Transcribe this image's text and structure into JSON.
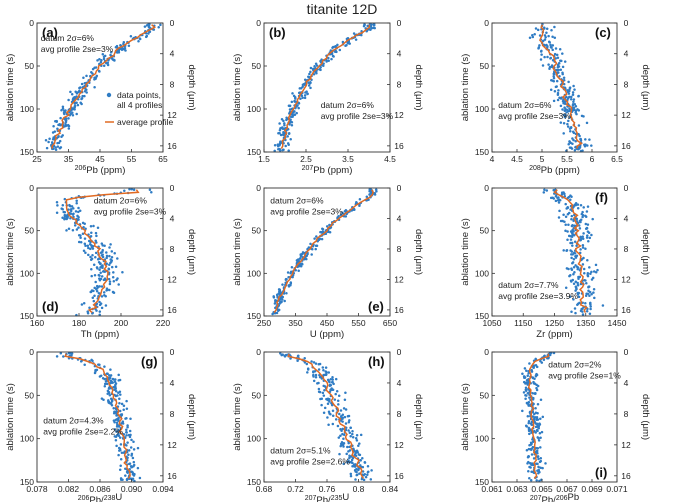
{
  "title": "titanite 12D",
  "y_axis_label": "ablation time (s)",
  "y2_axis_label": "depth (μm)",
  "y_ticks": [
    "0",
    "50",
    "100",
    "150"
  ],
  "y2_ticks": [
    "0",
    "4",
    "8",
    "12",
    "16"
  ],
  "colors": {
    "points": "#2f7cc4",
    "average": "#e06a23"
  },
  "legend": {
    "points_line1": "data points,",
    "points_line2": "all 4 profiles",
    "average": "average profile"
  },
  "chart_data": [
    {
      "id": "a",
      "label": "(a)",
      "type": "scatter",
      "xlabel_main": "Pb (ppm)",
      "xlabel_sup": "206",
      "xlabel_sub": "",
      "xlabel_tail": "",
      "xlim": [
        25,
        65
      ],
      "xticks": [
        "25",
        "35",
        "45",
        "55",
        "65"
      ],
      "ylim": [
        150,
        0
      ],
      "annotation": [
        "datum 2σ=6%",
        "avg profile 2se=3%"
      ],
      "profile_t": [
        5,
        10,
        15,
        20,
        30,
        40,
        50,
        60,
        70,
        80,
        90,
        100,
        110,
        120,
        130,
        140,
        145
      ],
      "profile_v": [
        62,
        60,
        58,
        55,
        51,
        48,
        45,
        43,
        41,
        39,
        37,
        35.5,
        34,
        33,
        31.5,
        30.5,
        30
      ],
      "jitter": 2.5
    },
    {
      "id": "b",
      "label": "(b)",
      "type": "scatter",
      "xlabel_main": "Pb (ppm)",
      "xlabel_sup": "207",
      "xlabel_sub": "",
      "xlabel_tail": "",
      "xlim": [
        1.5,
        4.5
      ],
      "xticks": [
        "1.5",
        "2.5",
        "3.5",
        "4.5"
      ],
      "ylim": [
        150,
        0
      ],
      "annotation": [
        "datum 2σ=6%",
        "avg profile 2se=3%"
      ],
      "profile_t": [
        5,
        10,
        15,
        20,
        30,
        40,
        50,
        60,
        70,
        80,
        90,
        100,
        110,
        120,
        130,
        140,
        145
      ],
      "profile_v": [
        4.0,
        3.9,
        3.7,
        3.5,
        3.2,
        3.0,
        2.8,
        2.65,
        2.5,
        2.4,
        2.3,
        2.2,
        2.1,
        2.05,
        2.0,
        1.95,
        1.9
      ],
      "jitter": 0.15
    },
    {
      "id": "c",
      "label": "(c)",
      "type": "scatter",
      "xlabel_main": "Pb (ppm)",
      "xlabel_sup": "208",
      "xlabel_sub": "",
      "xlabel_tail": "",
      "xlim": [
        4,
        6.5
      ],
      "xticks": [
        "4",
        "4.5",
        "5",
        "5.5",
        "6",
        "6.5"
      ],
      "ylim": [
        150,
        0
      ],
      "annotation": [
        "datum 2σ=6%",
        "avg profile 2se=3%"
      ],
      "profile_t": [
        5,
        10,
        15,
        20,
        30,
        40,
        50,
        60,
        70,
        80,
        90,
        100,
        110,
        120,
        130,
        140,
        145
      ],
      "profile_v": [
        5.0,
        5.05,
        4.95,
        5.0,
        5.1,
        5.2,
        5.25,
        5.3,
        5.4,
        5.45,
        5.5,
        5.55,
        5.6,
        5.65,
        5.7,
        5.75,
        5.7
      ],
      "jitter": 0.22
    },
    {
      "id": "d",
      "label": "(d)",
      "type": "scatter",
      "xlabel_main": "Th (ppm)",
      "xlabel_sup": "",
      "xlabel_sub": "",
      "xlabel_tail": "",
      "xlim": [
        160,
        230
      ],
      "xticks": [
        "160",
        "180",
        "200",
        "220"
      ],
      "ylim": [
        150,
        0
      ],
      "annotation": [
        "datum 2σ=6%",
        "avg profile 2se=3%"
      ],
      "profile_t": [
        5,
        10,
        15,
        20,
        30,
        40,
        50,
        60,
        70,
        80,
        90,
        100,
        110,
        120,
        130,
        140,
        145
      ],
      "profile_v": [
        215,
        185,
        175,
        176,
        178,
        182,
        186,
        190,
        193,
        196,
        198,
        199,
        198,
        196,
        194,
        192,
        190
      ],
      "jitter": 7
    },
    {
      "id": "e",
      "label": "(e)",
      "type": "scatter",
      "xlabel_main": "U (ppm)",
      "xlabel_sup": "",
      "xlabel_sub": "",
      "xlabel_tail": "",
      "xlim": [
        250,
        700
      ],
      "xticks": [
        "250",
        "350",
        "450",
        "550",
        "650"
      ],
      "ylim": [
        150,
        0
      ],
      "annotation": [
        "datum 2σ=6%",
        "avg profile 2se=3%"
      ],
      "profile_t": [
        5,
        10,
        15,
        20,
        30,
        40,
        50,
        60,
        70,
        80,
        90,
        100,
        110,
        120,
        130,
        140,
        145
      ],
      "profile_v": [
        640,
        630,
        605,
        580,
        540,
        500,
        470,
        440,
        415,
        395,
        370,
        350,
        335,
        320,
        305,
        295,
        290
      ],
      "jitter": 18
    },
    {
      "id": "f",
      "label": "(f)",
      "type": "scatter",
      "xlabel_main": "Zr (ppm)",
      "xlabel_sup": "",
      "xlabel_sub": "",
      "xlabel_tail": "",
      "xlim": [
        1050,
        1450
      ],
      "xticks": [
        "1050",
        "1150",
        "1250",
        "1350",
        "1450"
      ],
      "ylim": [
        150,
        0
      ],
      "annotation": [
        "datum 2σ=7.7%",
        "avg profile 2se=3.9%"
      ],
      "profile_t": [
        5,
        10,
        15,
        20,
        30,
        40,
        50,
        60,
        70,
        80,
        90,
        100,
        110,
        120,
        130,
        140,
        145
      ],
      "profile_v": [
        1250,
        1280,
        1300,
        1310,
        1315,
        1320,
        1320,
        1325,
        1325,
        1330,
        1330,
        1335,
        1335,
        1340,
        1340,
        1345,
        1340
      ],
      "jitter": 45
    },
    {
      "id": "g",
      "label": "(g)",
      "type": "scatter",
      "xlabel_main": "Pb/",
      "xlabel_sup": "206",
      "xlabel_sub": "238",
      "xlabel_tail": "U",
      "xlim": [
        0.078,
        0.094
      ],
      "xticks": [
        "0.078",
        "0.082",
        "0.086",
        "0.090",
        "0.094"
      ],
      "ylim": [
        150,
        0
      ],
      "annotation": [
        "datum 2σ=4.3%",
        "avg profile 2se=2.2%"
      ],
      "profile_t": [
        5,
        10,
        15,
        20,
        30,
        40,
        50,
        60,
        70,
        80,
        90,
        100,
        110,
        120,
        130,
        140,
        145
      ],
      "profile_v": [
        0.0815,
        0.0845,
        0.0855,
        0.0862,
        0.087,
        0.0874,
        0.0877,
        0.088,
        0.0883,
        0.0885,
        0.0887,
        0.0889,
        0.0891,
        0.0893,
        0.0895,
        0.0897,
        0.0898
      ],
      "jitter": 0.0012
    },
    {
      "id": "h",
      "label": "(h)",
      "type": "scatter",
      "xlabel_main": "Pb/",
      "xlabel_sup": "207",
      "xlabel_sub": "235",
      "xlabel_tail": "U",
      "xlim": [
        0.68,
        0.86
      ],
      "xticks": [
        "0.68",
        "0.72",
        "0.76",
        "0.8",
        "0.84"
      ],
      "ylim": [
        150,
        0
      ],
      "annotation": [
        "datum 2σ=5.1%",
        "avg profile 2se=2.6%"
      ],
      "profile_t": [
        5,
        10,
        15,
        20,
        30,
        40,
        50,
        60,
        70,
        80,
        90,
        100,
        110,
        120,
        130,
        140,
        145
      ],
      "profile_v": [
        0.715,
        0.74,
        0.75,
        0.755,
        0.765,
        0.77,
        0.775,
        0.78,
        0.785,
        0.79,
        0.795,
        0.8,
        0.805,
        0.81,
        0.815,
        0.82,
        0.82
      ],
      "jitter": 0.016
    },
    {
      "id": "i",
      "label": "(i)",
      "type": "scatter",
      "xlabel_main": "Pb/",
      "xlabel_sup": "207",
      "xlabel_sub": "",
      "xlabel_tail": "Pb",
      "xlabel_sup2": "206",
      "xlim": [
        0.061,
        0.071
      ],
      "xticks": [
        "0.061",
        "0.063",
        "0.065",
        "0.067",
        "0.069",
        "0.071"
      ],
      "ylim": [
        150,
        0
      ],
      "annotation": [
        "datum 2σ=2%",
        "avg profile 2se=1%"
      ],
      "profile_t": [
        5,
        10,
        15,
        20,
        30,
        40,
        50,
        60,
        70,
        80,
        90,
        100,
        110,
        120,
        130,
        140,
        145
      ],
      "profile_v": [
        0.0655,
        0.0645,
        0.0642,
        0.064,
        0.064,
        0.0641,
        0.0641,
        0.0642,
        0.0642,
        0.0643,
        0.0643,
        0.0644,
        0.0644,
        0.0645,
        0.0645,
        0.0645,
        0.0645
      ],
      "jitter": 0.0006
    }
  ]
}
